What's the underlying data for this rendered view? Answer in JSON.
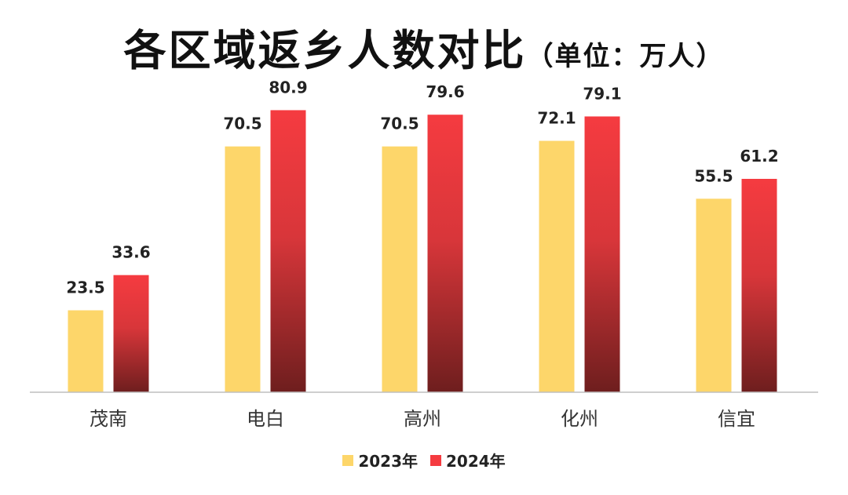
{
  "title": "各区域返乡人数对比",
  "title_unit": "（单位：万人）",
  "colors": {
    "series_2023": "#FDD66A",
    "series_2024_top": "#F53B40",
    "series_2024_bottom": "#6E1E1E",
    "axis": "#BFBFBF"
  },
  "chart_data": {
    "type": "bar",
    "title": "各区域返乡人数对比（单位：万人）",
    "categories": [
      "茂南",
      "电白",
      "高州",
      "化州",
      "信宜"
    ],
    "series": [
      {
        "name": "2023年",
        "values": [
          23.5,
          70.5,
          70.5,
          72.1,
          55.5
        ]
      },
      {
        "name": "2024年",
        "values": [
          33.6,
          80.9,
          79.6,
          79.1,
          61.2
        ]
      }
    ],
    "ylim": [
      0,
      90
    ],
    "grid": false,
    "legend_position": "bottom"
  }
}
